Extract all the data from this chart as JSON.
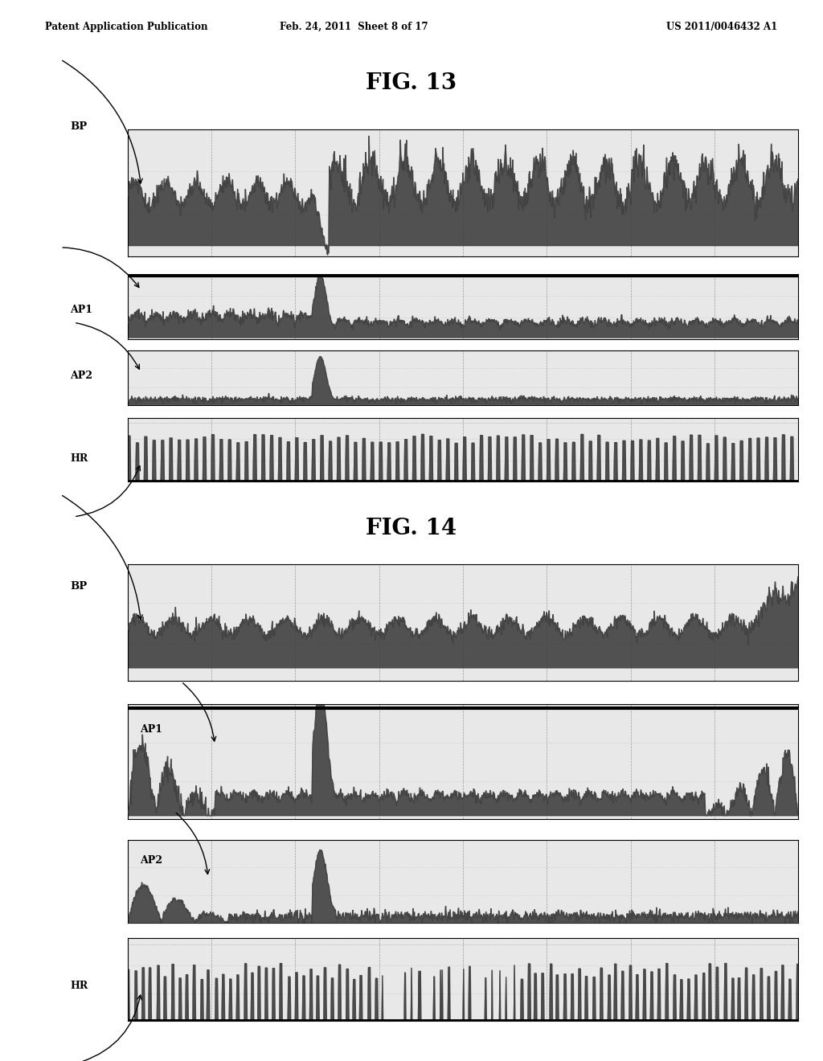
{
  "title1": "FIG. 13",
  "title2": "FIG. 14",
  "header_left": "Patent Application Publication",
  "header_center": "Feb. 24, 2011  Sheet 8 of 17",
  "header_right": "US 2011/0046432 A1",
  "bg_color": "#ffffff",
  "signal_color": "#404040",
  "panel_bg": "#e8e8e8",
  "label_BP": "BP",
  "label_AP1": "AP1",
  "label_AP2": "AP2",
  "label_HR": "HR",
  "n_vgrid": 8,
  "fig13": {
    "bp_panel": [
      0.155,
      0.758,
      0.815,
      0.12
    ],
    "ap1_panel": [
      0.155,
      0.68,
      0.815,
      0.062
    ],
    "ap2_panel": [
      0.155,
      0.618,
      0.815,
      0.052
    ],
    "hr_panel": [
      0.155,
      0.546,
      0.815,
      0.06
    ]
  },
  "fig14": {
    "bp_panel": [
      0.155,
      0.358,
      0.815,
      0.11
    ],
    "ap1_panel": [
      0.155,
      0.228,
      0.815,
      0.108
    ],
    "ap2_panel": [
      0.155,
      0.13,
      0.815,
      0.078
    ],
    "hr_panel": [
      0.155,
      0.038,
      0.815,
      0.078
    ]
  }
}
